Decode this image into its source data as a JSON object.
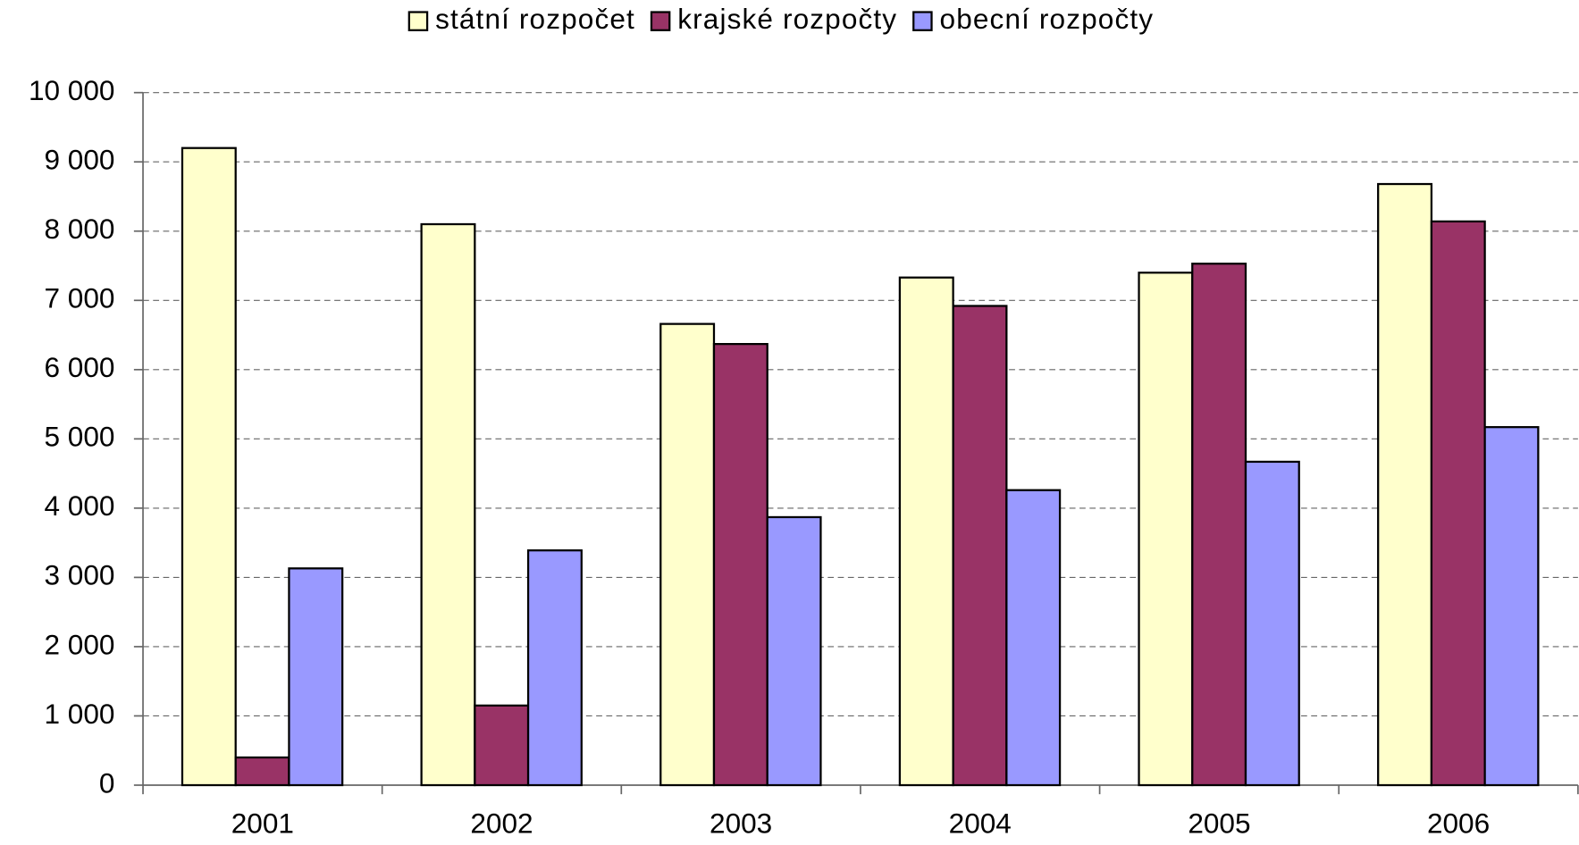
{
  "chart_data": {
    "type": "bar",
    "categories": [
      "2001",
      "2002",
      "2003",
      "2004",
      "2005",
      "2006"
    ],
    "series": [
      {
        "name": "státní rozpočet",
        "color": "#ffffcc",
        "values": [
          9200,
          8100,
          6660,
          7330,
          7400,
          8680
        ]
      },
      {
        "name": "krajské rozpočty",
        "color": "#993366",
        "values": [
          400,
          1150,
          6370,
          6920,
          7530,
          8140
        ]
      },
      {
        "name": "obecní rozpočty",
        "color": "#9999ff",
        "values": [
          3130,
          3390,
          3870,
          4260,
          4670,
          5170
        ]
      }
    ],
    "ylim": [
      0,
      10000
    ],
    "yticks": [
      0,
      {
        "value": 1000,
        "label": "1 000"
      },
      {
        "value": 2000,
        "label": "2 000"
      },
      {
        "value": 3000,
        "label": "3 000"
      },
      {
        "value": 4000,
        "label": "4 000"
      },
      {
        "value": 5000,
        "label": "5 000"
      },
      {
        "value": 6000,
        "label": "6 000"
      },
      {
        "value": 7000,
        "label": "7 000"
      },
      {
        "value": 8000,
        "label": "8 000"
      },
      {
        "value": 9000,
        "label": "9 000"
      },
      {
        "value": 10000,
        "label": "10 000"
      }
    ],
    "grid": true,
    "legend": "top"
  }
}
